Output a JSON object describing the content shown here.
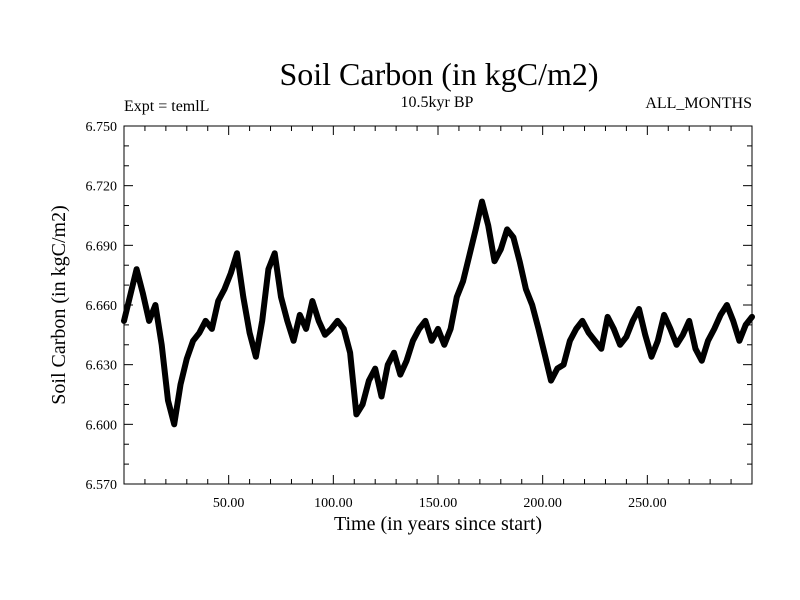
{
  "chart_data": {
    "type": "line",
    "title": "Soil Carbon (in kgC/m2)",
    "header_left": "Expt = temlL",
    "header_center": "10.5kyr BP",
    "header_right": "ALL_MONTHS",
    "xlabel": "Time (in years since start)",
    "ylabel": "Soil Carbon (in kgC/m2)",
    "xlim": [
      0,
      300
    ],
    "ylim": [
      6.57,
      6.75
    ],
    "x_ticks": [
      {
        "value": 50,
        "label": "50.00"
      },
      {
        "value": 100,
        "label": "100.00"
      },
      {
        "value": 150,
        "label": "150.00"
      },
      {
        "value": 200,
        "label": "200.00"
      },
      {
        "value": 250,
        "label": "250.00"
      }
    ],
    "y_ticks": [
      {
        "value": 6.57,
        "label": "6.570"
      },
      {
        "value": 6.6,
        "label": "6.600"
      },
      {
        "value": 6.63,
        "label": "6.630"
      },
      {
        "value": 6.66,
        "label": "6.660"
      },
      {
        "value": 6.69,
        "label": "6.690"
      },
      {
        "value": 6.72,
        "label": "6.720"
      },
      {
        "value": 6.75,
        "label": "6.750"
      }
    ],
    "x_minor_step": 10,
    "y_minor_step": 0.01,
    "series": [
      {
        "name": "Soil Carbon",
        "color": "#000000",
        "x": [
          0,
          3,
          6,
          9,
          12,
          15,
          18,
          21,
          24,
          27,
          30,
          33,
          36,
          39,
          42,
          45,
          48,
          51,
          54,
          57,
          60,
          63,
          66,
          69,
          72,
          75,
          78,
          81,
          84,
          87,
          90,
          93,
          96,
          99,
          102,
          105,
          108,
          111,
          114,
          117,
          120,
          123,
          126,
          129,
          132,
          135,
          138,
          141,
          144,
          147,
          150,
          153,
          156,
          159,
          162,
          165,
          168,
          171,
          174,
          177,
          180,
          183,
          186,
          189,
          192,
          195,
          198,
          201,
          204,
          207,
          210,
          213,
          216,
          219,
          222,
          225,
          228,
          231,
          234,
          237,
          240,
          243,
          246,
          249,
          252,
          255,
          258,
          261,
          264,
          267,
          270,
          273,
          276,
          279,
          282,
          285,
          288,
          291,
          294,
          297,
          300
        ],
        "values": [
          6.652,
          6.665,
          6.678,
          6.666,
          6.652,
          6.66,
          6.64,
          6.612,
          6.6,
          6.62,
          6.633,
          6.642,
          6.646,
          6.652,
          6.648,
          6.662,
          6.668,
          6.676,
          6.686,
          6.664,
          6.646,
          6.634,
          6.652,
          6.678,
          6.686,
          6.664,
          6.652,
          6.642,
          6.655,
          6.648,
          6.662,
          6.652,
          6.645,
          6.648,
          6.652,
          6.648,
          6.636,
          6.605,
          6.61,
          6.622,
          6.628,
          6.614,
          6.63,
          6.636,
          6.625,
          6.632,
          6.642,
          6.648,
          6.652,
          6.642,
          6.648,
          6.64,
          6.648,
          6.664,
          6.672,
          6.685,
          6.698,
          6.712,
          6.7,
          6.682,
          6.688,
          6.698,
          6.694,
          6.682,
          6.668,
          6.66,
          6.648,
          6.635,
          6.622,
          6.628,
          6.63,
          6.642,
          6.648,
          6.652,
          6.646,
          6.642,
          6.638,
          6.654,
          6.648,
          6.64,
          6.644,
          6.652,
          6.658,
          6.645,
          6.634,
          6.642,
          6.655,
          6.648,
          6.64,
          6.645,
          6.652,
          6.638,
          6.632,
          6.642,
          6.648,
          6.655,
          6.66,
          6.652,
          6.642,
          6.65,
          6.654
        ]
      }
    ]
  }
}
